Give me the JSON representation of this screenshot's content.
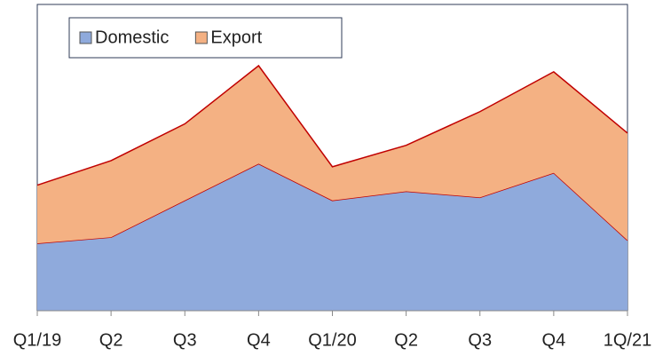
{
  "chart_data": {
    "type": "area",
    "stacked": true,
    "categories": [
      "Q1/19",
      "Q2",
      "Q3",
      "Q4",
      "Q1/20",
      "Q2",
      "Q3",
      "Q4",
      "1Q/21"
    ],
    "series": [
      {
        "name": "Domestic",
        "color": "#8faadc",
        "values": [
          22,
          24,
          36,
          48,
          36,
          39,
          37,
          45,
          23
        ]
      },
      {
        "name": "Export",
        "color": "#f4b183",
        "values": [
          19,
          25,
          25,
          32,
          11,
          15,
          28,
          33,
          35
        ]
      }
    ],
    "line_color": "#c00000",
    "ylim": [
      0,
      100
    ],
    "legend": "upper left"
  }
}
